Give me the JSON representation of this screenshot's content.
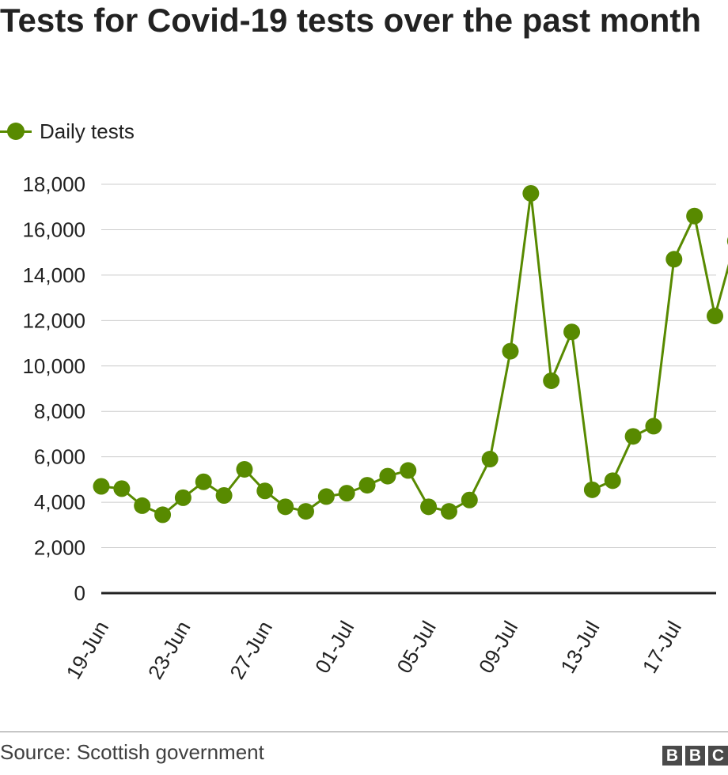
{
  "chart_data": {
    "type": "line",
    "title": "Tests for Covid-19 tests over the past month",
    "xlabel": "",
    "ylabel": "",
    "ylim": [
      0,
      18000
    ],
    "y_ticks": [
      "0",
      "2,000",
      "4,000",
      "6,000",
      "8,000",
      "10,000",
      "12,000",
      "14,000",
      "16,000",
      "18,000"
    ],
    "y_tick_values": [
      0,
      2000,
      4000,
      6000,
      8000,
      10000,
      12000,
      14000,
      16000,
      18000
    ],
    "x_tick_labels": [
      "19-Jun",
      "23-Jun",
      "27-Jun",
      "01-Jul",
      "05-Jul",
      "09-Jul",
      "13-Jul",
      "17-Jul"
    ],
    "grid": true,
    "legend_position": "top-left",
    "x": [
      "19-Jun",
      "20-Jun",
      "21-Jun",
      "22-Jun",
      "23-Jun",
      "24-Jun",
      "25-Jun",
      "26-Jun",
      "27-Jun",
      "28-Jun",
      "29-Jun",
      "30-Jun",
      "01-Jul",
      "02-Jul",
      "03-Jul",
      "04-Jul",
      "05-Jul",
      "06-Jul",
      "07-Jul",
      "08-Jul",
      "09-Jul",
      "10-Jul",
      "11-Jul",
      "12-Jul",
      "13-Jul",
      "14-Jul",
      "15-Jul",
      "16-Jul",
      "17-Jul",
      "18-Jul",
      "19-Jul",
      "20-Jul"
    ],
    "series": [
      {
        "name": "Daily tests",
        "color": "#588a00",
        "values": [
          4700,
          4600,
          3850,
          3450,
          4200,
          4900,
          4300,
          5450,
          4500,
          3800,
          3600,
          4250,
          4400,
          4750,
          5150,
          5400,
          3800,
          3600,
          4100,
          5900,
          10650,
          17600,
          9350,
          11500,
          4550,
          4950,
          6900,
          7350,
          14700,
          16600,
          12200,
          15500
        ]
      }
    ]
  },
  "legend": {
    "label": "Daily tests",
    "icon": "line-with-dot-marker"
  },
  "footer": {
    "source": "Source: Scottish government",
    "logo_letters": [
      "B",
      "B",
      "C"
    ]
  }
}
